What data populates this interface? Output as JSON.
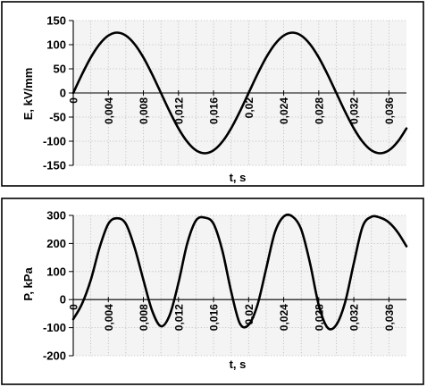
{
  "chart_data": [
    {
      "type": "line",
      "title": "",
      "xlabel": "t, s",
      "ylabel": "E, kV/mm",
      "xlim": [
        0,
        0.038
      ],
      "ylim": [
        -150,
        150
      ],
      "yticks": [
        150,
        100,
        50,
        0,
        -50,
        -100,
        -150
      ],
      "xticks": [
        0,
        0.004,
        0.008,
        0.012,
        0.016,
        0.02,
        0.024,
        0.028,
        0.032,
        0.036
      ],
      "xtick_labels": [
        "0",
        "0,004",
        "0,008",
        "0,012",
        "0,016",
        "0,02",
        "0,024",
        "0,028",
        "0,032",
        "0,036"
      ],
      "grid": true,
      "legend": "none",
      "series": [
        {
          "x": [
            0,
            0.001,
            0.002,
            0.003,
            0.004,
            0.005,
            0.006,
            0.007,
            0.008,
            0.009,
            0.01,
            0.011,
            0.012,
            0.013,
            0.014,
            0.015,
            0.016,
            0.017,
            0.018,
            0.019,
            0.02,
            0.021,
            0.022,
            0.023,
            0.024,
            0.025,
            0.026,
            0.027,
            0.028,
            0.029,
            0.03,
            0.031,
            0.032,
            0.033,
            0.034,
            0.035,
            0.036,
            0.037,
            0.038
          ],
          "values": [
            0,
            38.6,
            73.5,
            101.1,
            118.9,
            125,
            118.9,
            101.1,
            73.5,
            38.6,
            0,
            -38.6,
            -73.5,
            -101.1,
            -118.9,
            -125,
            -118.9,
            -101.1,
            -73.5,
            -38.6,
            0,
            38.6,
            73.5,
            101.1,
            118.9,
            125,
            118.9,
            101.1,
            73.5,
            38.6,
            0,
            -38.6,
            -73.5,
            -101.1,
            -118.9,
            -125,
            -118.9,
            -101.1,
            -73.5
          ]
        }
      ]
    },
    {
      "type": "line",
      "title": "",
      "xlabel": "t, s",
      "ylabel": "P, kPa",
      "xlim": [
        0,
        0.038
      ],
      "ylim": [
        -200,
        300
      ],
      "yticks": [
        300,
        200,
        100,
        0,
        -100,
        -200
      ],
      "xticks": [
        0,
        0.004,
        0.008,
        0.012,
        0.016,
        0.02,
        0.024,
        0.028,
        0.032,
        0.036
      ],
      "xtick_labels": [
        "0",
        "0,004",
        "0,008",
        "0,012",
        "0,016",
        "0,02",
        "0,024",
        "0,028",
        "0,032",
        "0,036"
      ],
      "grid": true,
      "legend": "none",
      "series": [
        {
          "x": [
            0,
            0.001,
            0.002,
            0.003,
            0.004,
            0.005,
            0.006,
            0.007,
            0.008,
            0.009,
            0.01,
            0.011,
            0.012,
            0.013,
            0.014,
            0.015,
            0.016,
            0.017,
            0.018,
            0.019,
            0.02,
            0.021,
            0.022,
            0.023,
            0.024,
            0.025,
            0.026,
            0.027,
            0.028,
            0.029,
            0.03,
            0.031,
            0.032,
            0.033,
            0.034,
            0.035,
            0.036,
            0.037,
            0.038
          ],
          "values": [
            -70,
            -15,
            70,
            185,
            270,
            290,
            270,
            185,
            70,
            -40,
            -95,
            -55,
            60,
            200,
            282,
            292,
            270,
            175,
            30,
            -85,
            -90,
            -20,
            110,
            240,
            296,
            296,
            250,
            130,
            -20,
            -100,
            -90,
            -10,
            130,
            260,
            295,
            292,
            275,
            240,
            190
          ]
        }
      ]
    }
  ]
}
